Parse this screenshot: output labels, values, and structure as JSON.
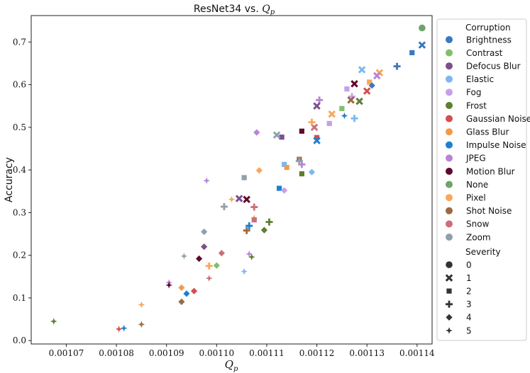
{
  "chart_data": {
    "type": "scatter",
    "title": "ResNet34 vs. Q_p",
    "title_text": "ResNet34 vs. ",
    "title_math": "Q",
    "title_math_sub": "p",
    "xlabel_math": "Q",
    "xlabel_math_sub": "p",
    "ylabel": "Accuracy",
    "xlim": [
      0.001063,
      0.001143
    ],
    "ylim": [
      -0.008,
      0.762
    ],
    "xticks": [
      "0.00107",
      "0.00108",
      "0.00109",
      "0.00110",
      "0.00111",
      "0.00112",
      "0.00113",
      "0.00114"
    ],
    "xtick_values": [
      0.00107,
      0.00108,
      0.00109,
      0.0011,
      0.00111,
      0.00112,
      0.00113,
      0.00114
    ],
    "yticks": [
      "0.0",
      "0.1",
      "0.2",
      "0.3",
      "0.4",
      "0.5",
      "0.6",
      "0.7"
    ],
    "ytick_values": [
      0.0,
      0.1,
      0.2,
      0.3,
      0.4,
      0.5,
      0.6,
      0.7
    ],
    "grid": false,
    "legend_position": "outside-right",
    "legend": {
      "hue_title": "Corruption",
      "style_title": "Severity",
      "corruptions": [
        {
          "name": "Brightness",
          "color": "#3a78c0"
        },
        {
          "name": "Contrast",
          "color": "#7fbf6e"
        },
        {
          "name": "Defocus Blur",
          "color": "#7b4f8c"
        },
        {
          "name": "Elastic",
          "color": "#7ab8f0"
        },
        {
          "name": "Fog",
          "color": "#c79fe8"
        },
        {
          "name": "Frost",
          "color": "#5c7f30"
        },
        {
          "name": "Gaussian Noise",
          "color": "#d64d4d"
        },
        {
          "name": "Glass Blur",
          "color": "#f39a4a"
        },
        {
          "name": "Impulse Noise",
          "color": "#1f7fcf"
        },
        {
          "name": "JPEG",
          "color": "#b983d8"
        },
        {
          "name": "Motion Blur",
          "color": "#5e0a2a"
        },
        {
          "name": "None",
          "color": "#6ea36a"
        },
        {
          "name": "Pixel",
          "color": "#f7a85a"
        },
        {
          "name": "Shot Noise",
          "color": "#9a6a40"
        },
        {
          "name": "Snow",
          "color": "#c9707a"
        },
        {
          "name": "Zoom",
          "color": "#8fa0ab"
        }
      ],
      "severities": [
        {
          "label": "0",
          "marker": "circle"
        },
        {
          "label": "1",
          "marker": "x"
        },
        {
          "label": "2",
          "marker": "square"
        },
        {
          "label": "3",
          "marker": "plus"
        },
        {
          "label": "4",
          "marker": "diamond"
        },
        {
          "label": "5",
          "marker": "star"
        }
      ]
    },
    "points": [
      {
        "x": 0.001141,
        "y": 0.733,
        "c": "None",
        "s": 0
      },
      {
        "x": 0.001141,
        "y": 0.693,
        "c": "Brightness",
        "s": 1
      },
      {
        "x": 0.001139,
        "y": 0.675,
        "c": "Brightness",
        "s": 2
      },
      {
        "x": 0.001136,
        "y": 0.643,
        "c": "Brightness",
        "s": 3
      },
      {
        "x": 0.0011325,
        "y": 0.628,
        "c": "Pixel",
        "s": 1
      },
      {
        "x": 0.001129,
        "y": 0.635,
        "c": "Elastic",
        "s": 1
      },
      {
        "x": 0.0011305,
        "y": 0.606,
        "c": "Pixel",
        "s": 2
      },
      {
        "x": 0.001132,
        "y": 0.621,
        "c": "JPEG",
        "s": 1
      },
      {
        "x": 0.001131,
        "y": 0.598,
        "c": "Brightness",
        "s": 4
      },
      {
        "x": 0.00113,
        "y": 0.585,
        "c": "Gaussian Noise",
        "s": 1
      },
      {
        "x": 0.0011275,
        "y": 0.602,
        "c": "Motion Blur",
        "s": 1
      },
      {
        "x": 0.001126,
        "y": 0.59,
        "c": "Fog",
        "s": 2
      },
      {
        "x": 0.001127,
        "y": 0.572,
        "c": "Fog",
        "s": 3
      },
      {
        "x": 0.0011285,
        "y": 0.561,
        "c": "Frost",
        "s": 1
      },
      {
        "x": 0.0011268,
        "y": 0.564,
        "c": "Shot Noise",
        "s": 1
      },
      {
        "x": 0.0011275,
        "y": 0.521,
        "c": "Elastic",
        "s": 3
      },
      {
        "x": 0.0011255,
        "y": 0.527,
        "c": "Impulse Noise",
        "s": 5
      },
      {
        "x": 0.001125,
        "y": 0.544,
        "c": "Contrast",
        "s": 2
      },
      {
        "x": 0.001123,
        "y": 0.531,
        "c": "Pixel",
        "s": 1
      },
      {
        "x": 0.0011205,
        "y": 0.564,
        "c": "JPEG",
        "s": 3
      },
      {
        "x": 0.00112,
        "y": 0.55,
        "c": "Defocus Blur",
        "s": 1
      },
      {
        "x": 0.0011225,
        "y": 0.509,
        "c": "Fog",
        "s": 2
      },
      {
        "x": 0.0011195,
        "y": 0.5,
        "c": "Snow",
        "s": 1
      },
      {
        "x": 0.001119,
        "y": 0.512,
        "c": "Pixel",
        "s": 3
      },
      {
        "x": 0.001117,
        "y": 0.491,
        "c": "Motion Blur",
        "s": 2
      },
      {
        "x": 0.00112,
        "y": 0.476,
        "c": "Gaussian Noise",
        "s": 2
      },
      {
        "x": 0.00112,
        "y": 0.469,
        "c": "Impulse Noise",
        "s": 1
      },
      {
        "x": 0.001113,
        "y": 0.477,
        "c": "Defocus Blur",
        "s": 2
      },
      {
        "x": 0.001112,
        "y": 0.482,
        "c": "Zoom",
        "s": 1
      },
      {
        "x": 0.001108,
        "y": 0.488,
        "c": "JPEG",
        "s": 4
      },
      {
        "x": 0.0011165,
        "y": 0.425,
        "c": "Shot Noise",
        "s": 2
      },
      {
        "x": 0.001117,
        "y": 0.413,
        "c": "JPEG",
        "s": 3
      },
      {
        "x": 0.0011165,
        "y": 0.421,
        "c": "Zoom",
        "s": 3
      },
      {
        "x": 0.0011135,
        "y": 0.413,
        "c": "Elastic",
        "s": 2
      },
      {
        "x": 0.001114,
        "y": 0.406,
        "c": "Glass Blur",
        "s": 2
      },
      {
        "x": 0.001119,
        "y": 0.395,
        "c": "Elastic",
        "s": 4
      },
      {
        "x": 0.001117,
        "y": 0.391,
        "c": "Frost",
        "s": 2
      },
      {
        "x": 0.0011085,
        "y": 0.399,
        "c": "Pixel",
        "s": 4
      },
      {
        "x": 0.0011055,
        "y": 0.382,
        "c": "Zoom",
        "s": 2
      },
      {
        "x": 0.001098,
        "y": 0.375,
        "c": "JPEG",
        "s": 5
      },
      {
        "x": 0.0011125,
        "y": 0.357,
        "c": "Impulse Noise",
        "s": 2
      },
      {
        "x": 0.0011135,
        "y": 0.352,
        "c": "Fog",
        "s": 4
      },
      {
        "x": 0.0011045,
        "y": 0.333,
        "c": "Defocus Blur",
        "s": 1
      },
      {
        "x": 0.001106,
        "y": 0.331,
        "c": "Motion Blur",
        "s": 1
      },
      {
        "x": 0.001103,
        "y": 0.331,
        "c": "Pixel",
        "s": 5
      },
      {
        "x": 0.0011015,
        "y": 0.314,
        "c": "Zoom",
        "s": 3
      },
      {
        "x": 0.0011075,
        "y": 0.313,
        "c": "Snow",
        "s": 3
      },
      {
        "x": 0.0011075,
        "y": 0.287,
        "c": "Glass Blur",
        "s": 5
      },
      {
        "x": 0.0011075,
        "y": 0.283,
        "c": "Snow",
        "s": 2
      },
      {
        "x": 0.0011105,
        "y": 0.278,
        "c": "Frost",
        "s": 3
      },
      {
        "x": 0.0011065,
        "y": 0.269,
        "c": "Impulse Noise",
        "s": 3
      },
      {
        "x": 0.001106,
        "y": 0.258,
        "c": "Shot Noise",
        "s": 3
      },
      {
        "x": 0.0011095,
        "y": 0.259,
        "c": "Frost",
        "s": 4
      },
      {
        "x": 0.0010975,
        "y": 0.255,
        "c": "Zoom",
        "s": 4
      },
      {
        "x": 0.0010975,
        "y": 0.22,
        "c": "Defocus Blur",
        "s": 4
      },
      {
        "x": 0.001101,
        "y": 0.205,
        "c": "Snow",
        "s": 4
      },
      {
        "x": 0.0011065,
        "y": 0.203,
        "c": "JPEG",
        "s": 5
      },
      {
        "x": 0.001107,
        "y": 0.196,
        "c": "Frost",
        "s": 5
      },
      {
        "x": 0.0010935,
        "y": 0.198,
        "c": "Zoom",
        "s": 5
      },
      {
        "x": 0.0010965,
        "y": 0.192,
        "c": "Motion Blur",
        "s": 4
      },
      {
        "x": 0.0011,
        "y": 0.176,
        "c": "Contrast",
        "s": 4
      },
      {
        "x": 0.0010985,
        "y": 0.175,
        "c": "Pixel",
        "s": 3
      },
      {
        "x": 0.0011055,
        "y": 0.162,
        "c": "Elastic",
        "s": 5
      },
      {
        "x": 0.0010985,
        "y": 0.146,
        "c": "Snow",
        "s": 5
      },
      {
        "x": 0.0010905,
        "y": 0.136,
        "c": "JPEG",
        "s": 5
      },
      {
        "x": 0.0010905,
        "y": 0.13,
        "c": "Motion Blur",
        "s": 5
      },
      {
        "x": 0.001093,
        "y": 0.124,
        "c": "Glass Blur",
        "s": 4
      },
      {
        "x": 0.0010955,
        "y": 0.116,
        "c": "Gaussian Noise",
        "s": 4
      },
      {
        "x": 0.001094,
        "y": 0.11,
        "c": "Impulse Noise",
        "s": 4
      },
      {
        "x": 0.001093,
        "y": 0.091,
        "c": "Shot Noise",
        "s": 4
      },
      {
        "x": 0.001085,
        "y": 0.084,
        "c": "Pixel",
        "s": 5
      },
      {
        "x": 0.001085,
        "y": 0.038,
        "c": "Shot Noise",
        "s": 5
      },
      {
        "x": 0.0010675,
        "y": 0.045,
        "c": "Frost",
        "s": 5
      },
      {
        "x": 0.0010805,
        "y": 0.027,
        "c": "Gaussian Noise",
        "s": 5
      },
      {
        "x": 0.0010815,
        "y": 0.029,
        "c": "Impulse Noise",
        "s": 5
      }
    ]
  }
}
